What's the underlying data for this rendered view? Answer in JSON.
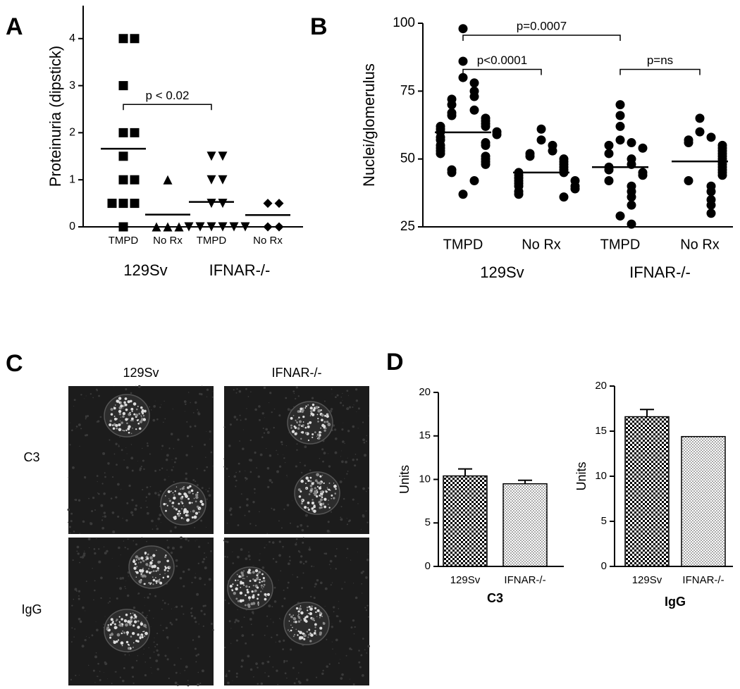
{
  "chart_data": [
    {
      "type": "dotplot",
      "panel": "A",
      "ylabel": "Proteinuria (dipstick)",
      "categories": [
        "TMPD",
        "No Rx",
        "TMPD",
        "No Rx"
      ],
      "groups": [
        "129Sv",
        "IFNAR-/-"
      ],
      "markers": [
        "square",
        "triangle",
        "triangle-down",
        "diamond"
      ],
      "color": "#000000",
      "points": [
        [
          4,
          4,
          3,
          2,
          2,
          1.5,
          1,
          1,
          0.5,
          0.5,
          0.5,
          0
        ],
        [
          1,
          0,
          0,
          0
        ],
        [
          1.5,
          1.5,
          1,
          1,
          0.5,
          0.5,
          0,
          0,
          0,
          0,
          0,
          0
        ],
        [
          0.5,
          0.5,
          0,
          0
        ]
      ],
      "means": [
        1.66,
        0.26,
        0.53,
        0.25
      ],
      "ylim": [
        0,
        4.7
      ],
      "yticks": [
        0,
        1,
        2,
        3,
        4
      ],
      "annotations": [
        {
          "text": "p < 0.02",
          "from": 0,
          "to": 2,
          "y": 2.6
        }
      ]
    },
    {
      "type": "dotplot",
      "panel": "B",
      "ylabel": "Nuclei/glomerulus",
      "categories": [
        "TMPD",
        "No Rx",
        "TMPD",
        "No Rx"
      ],
      "groups": [
        "129Sv",
        "IFNAR-/-"
      ],
      "markers": [
        "circle",
        "circle",
        "circle",
        "circle"
      ],
      "color": "#000000",
      "points": [
        [
          98,
          86,
          80,
          78,
          75,
          73,
          72,
          70,
          68,
          67,
          66,
          65,
          64,
          63,
          62,
          62,
          61,
          60,
          60,
          59,
          58,
          57,
          56,
          55,
          55,
          54,
          53,
          52,
          51,
          50,
          49,
          48,
          46,
          45,
          42,
          37
        ],
        [
          61,
          57,
          55,
          53,
          52,
          51,
          50,
          49,
          48,
          47,
          46,
          45,
          45,
          44,
          43,
          42,
          42,
          41,
          40,
          40,
          39,
          38,
          37,
          36
        ],
        [
          70,
          66,
          62,
          57,
          56,
          55,
          54,
          52,
          50,
          48,
          47,
          46,
          45,
          44,
          42,
          40,
          38,
          36,
          33,
          29,
          26
        ],
        [
          65,
          60,
          58,
          57,
          56,
          55,
          54,
          53,
          52,
          51,
          50,
          49,
          48,
          47,
          46,
          45,
          44,
          42,
          40,
          38,
          35,
          33,
          30
        ]
      ],
      "means": [
        59.8,
        45,
        47,
        49.1
      ],
      "ylim": [
        25,
        100
      ],
      "yticks": [
        25,
        50,
        75,
        100
      ],
      "annotations": [
        {
          "text": "p=0.0007",
          "from": 0,
          "to": 2,
          "y": 95.6
        },
        {
          "text": "p<0.0001",
          "from": 0,
          "to": 1,
          "y": 83
        },
        {
          "text": "p=ns",
          "from": 2,
          "to": 3,
          "y": 83
        }
      ]
    },
    {
      "type": "bar",
      "panel": "D",
      "ylabel": "Units",
      "xlabel": "C3",
      "categories": [
        "129Sv",
        "IFNAR-/-"
      ],
      "values": [
        10.4,
        9.5
      ],
      "errors": [
        0.8,
        0.4
      ],
      "patterns": [
        "checker",
        "dots"
      ],
      "ylim": [
        0,
        20
      ],
      "yticks": [
        0,
        5,
        10,
        15,
        20
      ]
    },
    {
      "type": "bar",
      "ylabel": "Units",
      "xlabel": "IgG",
      "categories": [
        "129Sv",
        "IFNAR-/-"
      ],
      "values": [
        16.6,
        14.4
      ],
      "errors": [
        0.8,
        0
      ],
      "patterns": [
        "checker",
        "dots"
      ],
      "ylim": [
        0,
        20
      ],
      "yticks": [
        0,
        5,
        10,
        15,
        20
      ]
    }
  ],
  "micrographs": {
    "panel": "C",
    "columns": [
      "129Sv",
      "IFNAR-/-"
    ],
    "rows": [
      "C3",
      "IgG"
    ]
  }
}
